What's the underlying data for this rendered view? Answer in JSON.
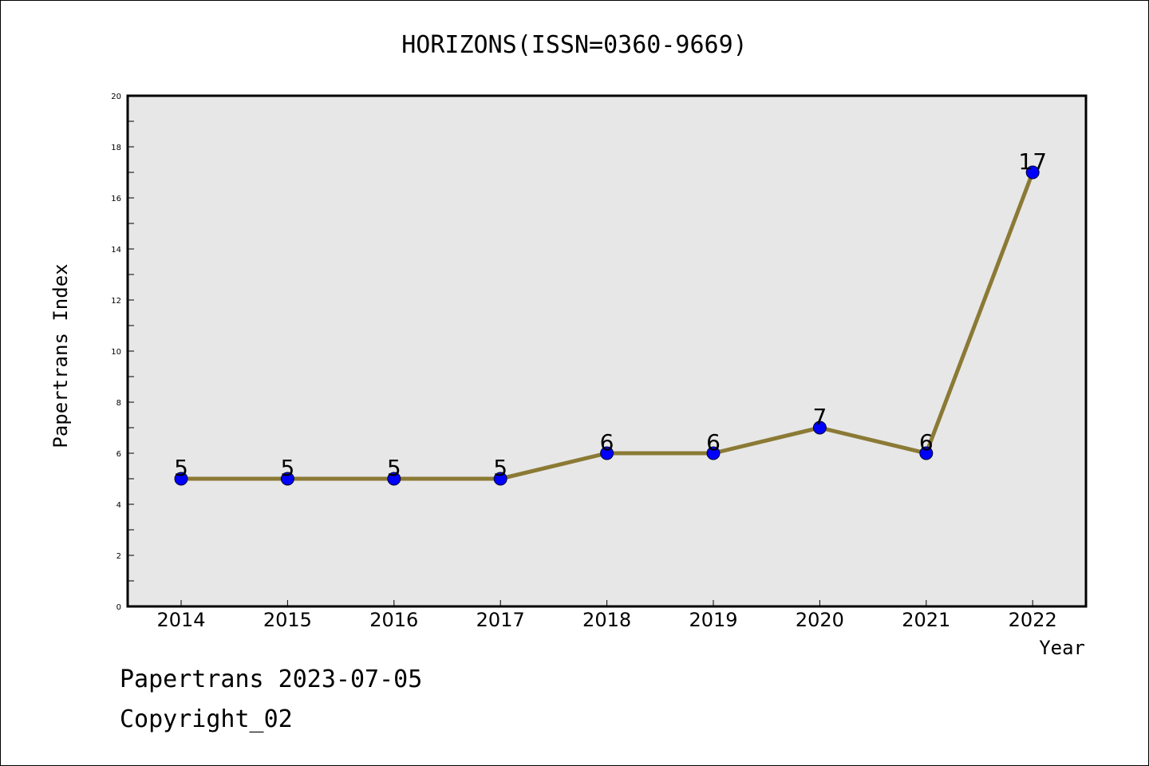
{
  "footer": {
    "line1": "Papertrans 2023-07-05",
    "line2": "Copyright_02"
  },
  "chart_data": {
    "type": "line",
    "title": "HORIZONS(ISSN=0360-9669)",
    "xlabel": "Year",
    "ylabel": "Papertrans Index",
    "categories": [
      "2014",
      "2015",
      "2016",
      "2017",
      "2018",
      "2019",
      "2020",
      "2021",
      "2022"
    ],
    "series": [
      {
        "values": [
          5,
          5,
          5,
          5,
          6,
          6,
          7,
          6,
          17
        ]
      }
    ],
    "data_labels": [
      "5",
      "5",
      "5",
      "5",
      "6",
      "6",
      "7",
      "6",
      "17"
    ],
    "ylim": [
      0,
      20
    ],
    "yticks": [
      0,
      2,
      4,
      6,
      8,
      10,
      12,
      14,
      16,
      18,
      20
    ],
    "ytick_labels": [
      "0",
      "2",
      "4",
      "6",
      "8",
      "10",
      "12",
      "14",
      "16",
      "18",
      "20"
    ],
    "grid": false,
    "legend": "none",
    "colors": {
      "line": "#8b7a35",
      "marker_fill": "#0000ff",
      "marker_stroke": "#000033",
      "plot_background": "#e7e7e7"
    }
  }
}
